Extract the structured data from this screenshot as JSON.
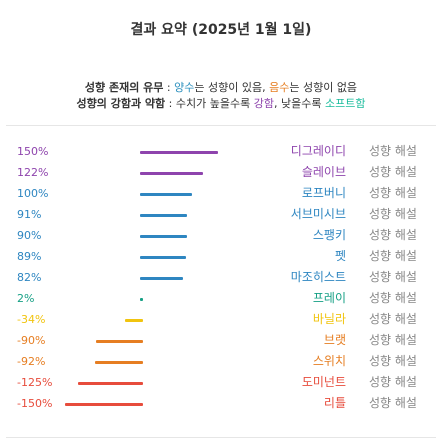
{
  "header": {
    "title": "결과 요약 (2025년 1월 1일)"
  },
  "legend": {
    "line1": {
      "key": "성향 존재의 유무",
      "sep": " : ",
      "positive_word": "양수",
      "positive_rest": "는 성향이 있음, ",
      "negative_word": "음수",
      "negative_rest": "는 성향이 없음"
    },
    "line2": {
      "key": "성향의 강함과 약함",
      "sep": " : 수치가 높을수록 ",
      "strong_word": "강함",
      "mid": ", 낮을수록 ",
      "soft_word": "소프트함"
    },
    "colors": {
      "positive": "#2a8fbd",
      "negative": "#e67e22",
      "strong": "#8e44ad",
      "soft": "#1abc9c"
    }
  },
  "results": [
    {
      "percent": "150%",
      "value": 150,
      "name": "디그레이디",
      "link": "성향 해설",
      "color": "#8e44ad"
    },
    {
      "percent": "122%",
      "value": 122,
      "name": "슬레이브",
      "link": "성향 해설",
      "color": "#8e44ad"
    },
    {
      "percent": "100%",
      "value": 100,
      "name": "로프버니",
      "link": "성향 해설",
      "color": "#2e86c1"
    },
    {
      "percent": "91%",
      "value": 91,
      "name": "서브미시브",
      "link": "성향 해설",
      "color": "#2e86c1"
    },
    {
      "percent": "90%",
      "value": 90,
      "name": "스팽키",
      "link": "성향 해설",
      "color": "#2e86c1"
    },
    {
      "percent": "89%",
      "value": 89,
      "name": "펫",
      "link": "성향 해설",
      "color": "#2e86c1"
    },
    {
      "percent": "82%",
      "value": 82,
      "name": "마조히스트",
      "link": "성향 해설",
      "color": "#2e86c1"
    },
    {
      "percent": "2%",
      "value": 2,
      "name": "프레이",
      "link": "성향 해설",
      "color": "#16a085"
    },
    {
      "percent": "-34%",
      "value": -34,
      "name": "바닐라",
      "link": "성향 해설",
      "color": "#f1c40f"
    },
    {
      "percent": "-90%",
      "value": -90,
      "name": "브랫",
      "link": "성향 해설",
      "color": "#e67e22"
    },
    {
      "percent": "-92%",
      "value": -92,
      "name": "스위치",
      "link": "성향 해설",
      "color": "#e67e22"
    },
    {
      "percent": "-125%",
      "value": -125,
      "name": "도미넌트",
      "link": "성향 해설",
      "color": "#e74c3c"
    },
    {
      "percent": "-150%",
      "value": -150,
      "name": "리틀",
      "link": "성향 해설",
      "color": "#e74c3c"
    }
  ]
}
